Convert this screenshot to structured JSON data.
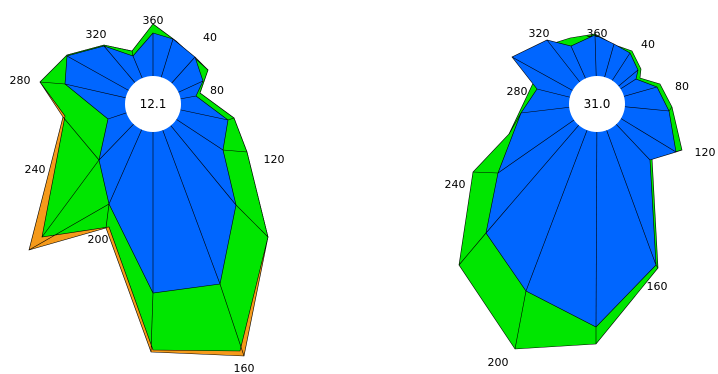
{
  "colors": {
    "outer_fill": "#f59a1b",
    "middle_fill": "#00e600",
    "inner_fill": "#0066ff",
    "hole_fill": "#ffffff",
    "ray_color": "#000000"
  },
  "diagrams": [
    {
      "center_value": "12.1",
      "direction_labels": [
        "360",
        "40",
        "80",
        "120",
        "160",
        "200",
        "240",
        "280",
        "320"
      ]
    },
    {
      "center_value": "31.0",
      "direction_labels": [
        "360",
        "40",
        "80",
        "120",
        "160",
        "200",
        "240",
        "280",
        "320"
      ]
    }
  ]
}
